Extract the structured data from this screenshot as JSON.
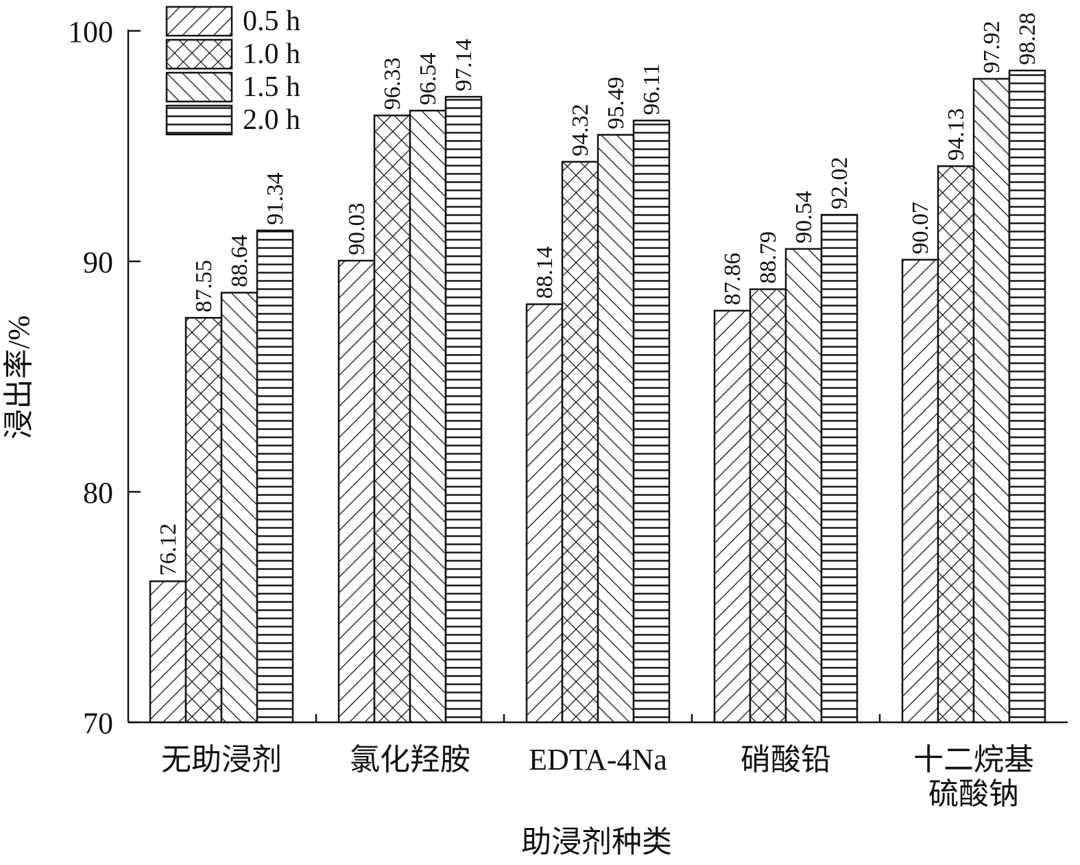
{
  "chart_data": {
    "type": "bar",
    "xlabel": "助浸剂种类",
    "ylabel": "浸出率/%",
    "ylim": [
      70,
      100
    ],
    "yticks": [
      70,
      80,
      90,
      100
    ],
    "categories": [
      [
        "无助浸剂"
      ],
      [
        "氯化羟胺"
      ],
      [
        "EDTA-4Na"
      ],
      [
        "硝酸铅"
      ],
      [
        "十二烷基",
        "硫酸钠"
      ]
    ],
    "series": [
      {
        "name": "0.5 h",
        "pattern": "diag-right",
        "values": [
          76.12,
          90.03,
          88.14,
          87.86,
          90.07
        ],
        "labels": [
          "76.12",
          "90.03",
          "88.14",
          "87.86",
          "90.07"
        ]
      },
      {
        "name": "1.0 h",
        "pattern": "crosshatch",
        "values": [
          87.55,
          96.33,
          94.32,
          88.79,
          94.13
        ],
        "labels": [
          "87.55",
          "96.33",
          "94.32",
          "88.79",
          "94.13"
        ]
      },
      {
        "name": "1.5 h",
        "pattern": "diag-left",
        "values": [
          88.64,
          96.54,
          95.49,
          90.54,
          97.92
        ],
        "labels": [
          "88.64",
          "96.54",
          "95.49",
          "90.54",
          "97.92"
        ]
      },
      {
        "name": "2.0 h",
        "pattern": "horizontal",
        "values": [
          91.34,
          97.14,
          96.11,
          92.02,
          98.28
        ],
        "labels": [
          "91.34",
          "97.14",
          "96.11",
          "92.02",
          "98.28"
        ]
      }
    ],
    "legend_position": "top-left",
    "grid": false,
    "colors": {
      "ink": "#111111",
      "background": "#ffffff"
    }
  }
}
